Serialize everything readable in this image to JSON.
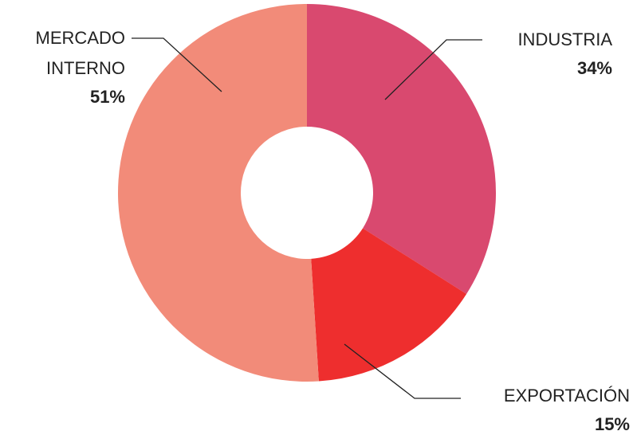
{
  "chart_data": {
    "type": "donut",
    "categories": [
      "INDUSTRIA",
      "EXPORTACIÓN",
      "MERCADO INTERNO"
    ],
    "values": [
      34,
      15,
      51
    ],
    "value_labels": [
      "34%",
      "15%",
      "51%"
    ],
    "colors": [
      "#d9496f",
      "#ee2e2e",
      "#f28b79"
    ]
  }
}
